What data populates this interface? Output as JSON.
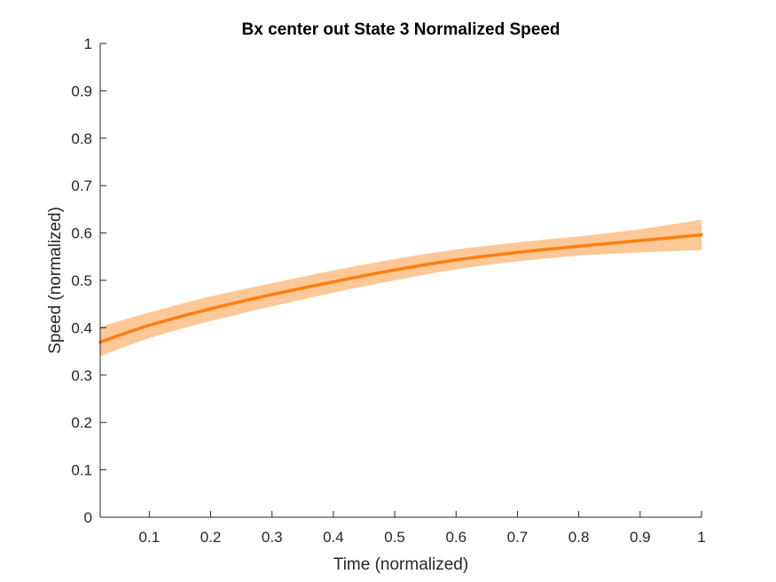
{
  "chart_data": {
    "type": "line",
    "title": "Bx  center out State 3 Normalized Speed",
    "xlabel": "Time (normalized)",
    "ylabel": "Speed (normalized)",
    "xlim": [
      0.02,
      1
    ],
    "ylim": [
      0,
      1
    ],
    "xticks": [
      "0.1",
      "0.2",
      "0.3",
      "0.4",
      "0.5",
      "0.6",
      "0.7",
      "0.8",
      "0.9",
      "1"
    ],
    "yticks": [
      "0",
      "0.1",
      "0.2",
      "0.3",
      "0.4",
      "0.5",
      "0.6",
      "0.7",
      "0.8",
      "0.9",
      "1"
    ],
    "grid": false,
    "colors": {
      "line": "#ff7f0e",
      "band": "#fdc898",
      "axis": "#262626"
    },
    "series": [
      {
        "x": [
          0.02,
          0.1,
          0.2,
          0.3,
          0.4,
          0.5,
          0.6,
          0.7,
          0.8,
          0.9,
          1.0
        ],
        "values": [
          0.37,
          0.405,
          0.44,
          0.47,
          0.497,
          0.522,
          0.543,
          0.559,
          0.572,
          0.584,
          0.596
        ],
        "lower": [
          0.34,
          0.378,
          0.414,
          0.445,
          0.474,
          0.5,
          0.523,
          0.54,
          0.552,
          0.559,
          0.564
        ],
        "upper": [
          0.402,
          0.432,
          0.466,
          0.494,
          0.521,
          0.545,
          0.565,
          0.58,
          0.593,
          0.608,
          0.628
        ]
      }
    ]
  }
}
